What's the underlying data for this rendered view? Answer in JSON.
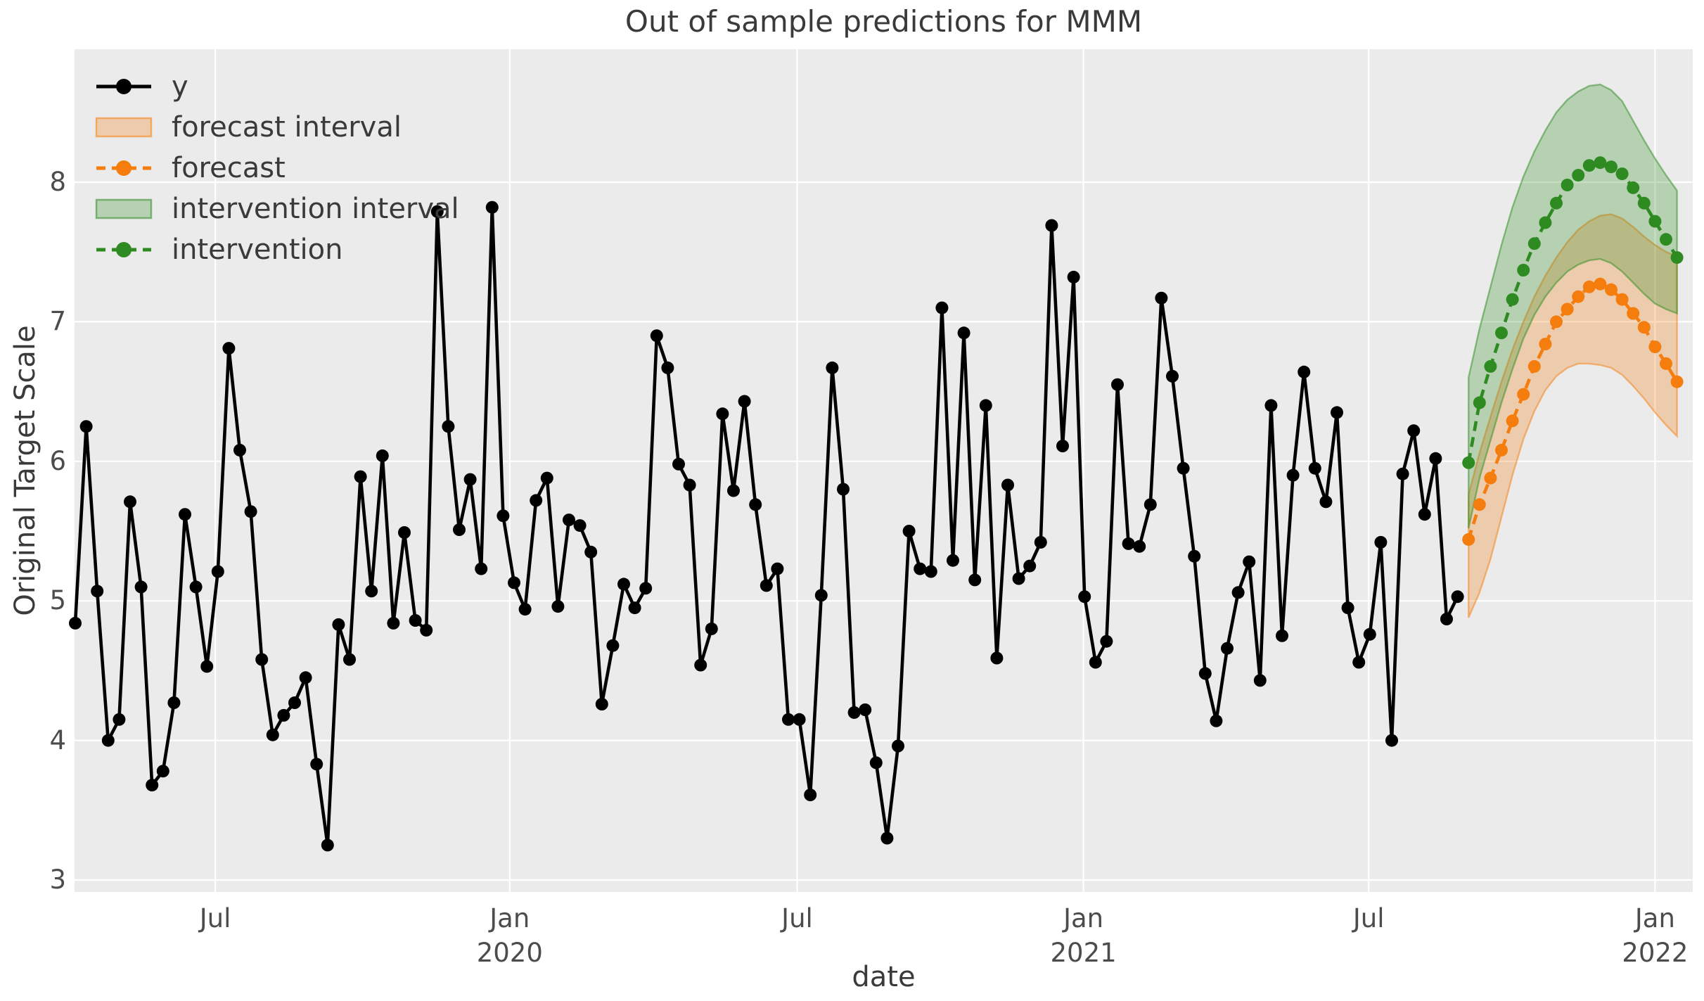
{
  "figure": {
    "title": "Out of sample predictions for MMM",
    "xlabel": "date",
    "ylabel": "Original Target Scale"
  },
  "legend": {
    "position": "upper left",
    "items": [
      {
        "label": "y",
        "marker": "black-solid-line-dot"
      },
      {
        "label": "forecast interval",
        "marker": "orange-band-patch"
      },
      {
        "label": "forecast",
        "marker": "orange-dashed-line-dot"
      },
      {
        "label": "intervention interval",
        "marker": "green-band-patch"
      },
      {
        "label": "intervention",
        "marker": "green-dashed-line-dot"
      }
    ]
  },
  "colors": {
    "axes_background": "#ebebeb",
    "grid": "#ffffff",
    "y_series": "#000000",
    "forecast": "#f57d0d",
    "intervention": "#2e8b22",
    "band_fill_alpha": 0.28,
    "band_edge_alpha": 0.5,
    "text": "#3a3a3a",
    "tick_text": "#4c4c4c"
  },
  "chart_data": {
    "type": "line",
    "title": "Out of sample predictions for MMM",
    "xlabel": "date",
    "ylabel": "Original Target Scale",
    "ylim": [
      2.91,
      8.95
    ],
    "grid": true,
    "legend_position": "upper left",
    "x_axis": {
      "frequency": "weekly",
      "start_date": "2019-04-03",
      "ticks": [
        {
          "label": "Jul",
          "year": "",
          "week": 12.76
        },
        {
          "label": "Jan",
          "year": "2020",
          "week": 39.6
        },
        {
          "label": "Jul",
          "year": "",
          "week": 65.8
        },
        {
          "label": "Jan",
          "year": "2021",
          "week": 91.9
        },
        {
          "label": "Jul",
          "year": "",
          "week": 117.9
        },
        {
          "label": "Jan",
          "year": "2022",
          "week": 144.0
        }
      ]
    },
    "y_axis": {
      "ticks": [
        3,
        4,
        5,
        6,
        7,
        8
      ]
    },
    "series": {
      "y": {
        "label": "y",
        "style": "solid",
        "marker": "circle",
        "start_week": 0,
        "values": [
          4.84,
          6.25,
          5.07,
          4.0,
          4.15,
          5.71,
          5.1,
          3.68,
          3.78,
          4.27,
          5.62,
          5.1,
          4.53,
          5.21,
          6.81,
          6.08,
          5.64,
          4.58,
          4.04,
          4.18,
          4.27,
          4.45,
          3.83,
          3.25,
          4.83,
          4.58,
          5.89,
          5.07,
          6.04,
          4.84,
          5.49,
          4.86,
          4.79,
          7.79,
          6.25,
          5.51,
          5.87,
          5.23,
          7.82,
          5.61,
          5.13,
          4.94,
          5.72,
          5.88,
          4.96,
          5.58,
          5.54,
          5.35,
          4.26,
          4.68,
          5.12,
          4.95,
          5.09,
          6.9,
          6.67,
          5.98,
          5.83,
          4.54,
          4.8,
          6.34,
          5.79,
          6.43,
          5.69,
          5.11,
          5.23,
          4.15,
          4.15,
          3.61,
          5.04,
          6.67,
          5.8,
          4.2,
          4.22,
          3.84,
          3.3,
          3.96,
          5.5,
          5.23,
          5.21,
          7.1,
          5.29,
          6.92,
          5.15,
          6.4,
          4.59,
          5.83,
          5.16,
          5.25,
          5.42,
          7.69,
          6.11,
          7.32,
          5.03,
          4.56,
          4.71,
          6.55,
          5.41,
          5.39,
          5.69,
          7.17,
          6.61,
          5.95,
          5.32,
          4.48,
          4.14,
          4.66,
          5.06,
          5.28,
          4.43,
          6.4,
          4.75,
          5.9,
          6.64,
          5.95,
          5.71,
          6.35,
          4.95,
          4.56,
          4.76,
          5.42,
          4.0,
          5.91,
          6.22,
          5.62,
          6.02,
          4.87,
          5.03
        ]
      },
      "forecast": {
        "label": "forecast",
        "style": "dashed",
        "marker": "circle",
        "start_week": 127,
        "values": [
          5.44,
          5.69,
          5.88,
          6.08,
          6.29,
          6.48,
          6.68,
          6.84,
          7.0,
          7.09,
          7.18,
          7.25,
          7.27,
          7.23,
          7.16,
          7.06,
          6.96,
          6.82,
          6.7,
          6.57
        ]
      },
      "forecast_interval": {
        "label": "forecast interval",
        "start_week": 127,
        "lower": [
          4.88,
          5.06,
          5.3,
          5.6,
          5.9,
          6.16,
          6.36,
          6.51,
          6.61,
          6.67,
          6.7,
          6.7,
          6.69,
          6.67,
          6.62,
          6.54,
          6.45,
          6.35,
          6.26,
          6.18
        ],
        "upper": [
          5.76,
          6.06,
          6.32,
          6.57,
          6.8,
          7.0,
          7.18,
          7.33,
          7.46,
          7.57,
          7.66,
          7.72,
          7.76,
          7.77,
          7.74,
          7.68,
          7.61,
          7.55,
          7.5,
          7.47
        ]
      },
      "intervention": {
        "label": "intervention",
        "style": "dashed",
        "marker": "circle",
        "start_week": 127,
        "values": [
          5.99,
          6.42,
          6.68,
          6.92,
          7.16,
          7.37,
          7.56,
          7.71,
          7.85,
          7.98,
          8.05,
          8.12,
          8.14,
          8.11,
          8.06,
          7.96,
          7.85,
          7.72,
          7.59,
          7.46
        ]
      },
      "intervention_interval": {
        "label": "intervention interval",
        "start_week": 127,
        "lower": [
          5.52,
          5.88,
          6.15,
          6.42,
          6.66,
          6.88,
          7.05,
          7.18,
          7.28,
          7.36,
          7.41,
          7.44,
          7.45,
          7.42,
          7.36,
          7.28,
          7.2,
          7.13,
          7.09,
          7.06
        ],
        "upper": [
          6.6,
          6.95,
          7.25,
          7.55,
          7.82,
          8.04,
          8.22,
          8.37,
          8.5,
          8.59,
          8.65,
          8.69,
          8.7,
          8.66,
          8.58,
          8.44,
          8.3,
          8.17,
          8.05,
          7.94
        ]
      }
    }
  }
}
